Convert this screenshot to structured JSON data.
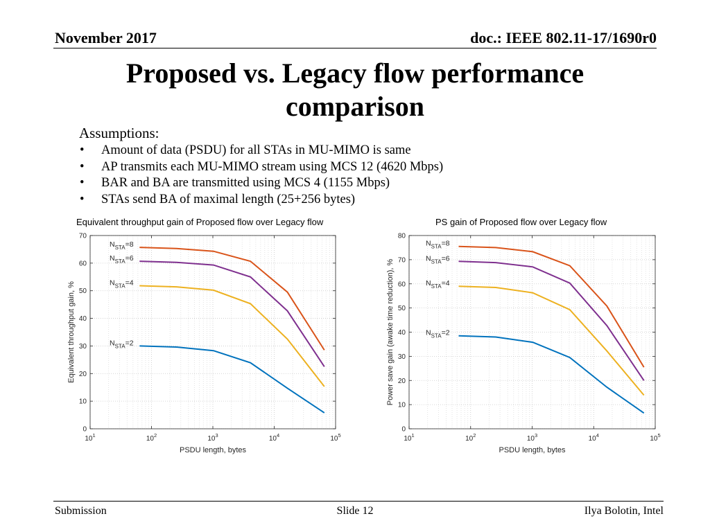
{
  "header": {
    "date": "November 2017",
    "doc": "doc.: IEEE 802.11-17/1690r0"
  },
  "title": {
    "line1": "Proposed vs. Legacy flow performance",
    "line2": "comparison"
  },
  "assumptions": {
    "heading": "Assumptions:",
    "bullet_glyph": "•",
    "items": [
      "Amount of data (PSDU) for all STAs in MU-MIMO is same",
      "AP transmits each MU-MIMO stream using MCS 12 (4620 Mbps)",
      "BAR and BA are transmitted using MCS 4 (1155 Mbps)",
      "STAs send BA of maximal length (25+256 bytes)"
    ]
  },
  "chart_data": [
    {
      "type": "line",
      "title": "Equivalent throughput gain of Proposed flow over Legacy flow",
      "xlabel": "PSDU length, bytes",
      "ylabel": "Equivalent throughput gain, %",
      "xscale": "log",
      "xlim": [
        10,
        100000
      ],
      "ylim": [
        0,
        70
      ],
      "yticks": [
        0,
        10,
        20,
        30,
        40,
        50,
        60,
        70
      ],
      "xticks": [
        10,
        100,
        1000,
        10000,
        100000
      ],
      "xtick_labels": [
        "10",
        "10",
        "10",
        "10",
        "10"
      ],
      "xtick_exponents": [
        "1",
        "2",
        "3",
        "4",
        "5"
      ],
      "grid": "on",
      "x": [
        64,
        256,
        1024,
        4096,
        16384,
        65536
      ],
      "series": [
        {
          "name": "N",
          "sub": "STA",
          "suffix": "=8",
          "color": "#D95319",
          "values": [
            65.7,
            65.3,
            64.3,
            60.7,
            49.5,
            28.5
          ]
        },
        {
          "name": "N",
          "sub": "STA",
          "suffix": "=6",
          "color": "#7E2F8E",
          "values": [
            60.7,
            60.3,
            59.3,
            55.0,
            42.7,
            22.5
          ]
        },
        {
          "name": "N",
          "sub": "STA",
          "suffix": "=4",
          "color": "#EDB120",
          "values": [
            51.8,
            51.4,
            50.2,
            45.3,
            32.5,
            15.3
          ]
        },
        {
          "name": "N",
          "sub": "STA",
          "suffix": "=2",
          "color": "#0072BD",
          "values": [
            30.0,
            29.6,
            28.3,
            23.9,
            14.7,
            5.8
          ]
        }
      ]
    },
    {
      "type": "line",
      "title": "PS gain of Proposed flow over Legacy flow",
      "xlabel": "PSDU length, bytes",
      "ylabel": "Power save gain (awake time reduction), %",
      "xscale": "log",
      "xlim": [
        10,
        100000
      ],
      "ylim": [
        0,
        80
      ],
      "yticks": [
        0,
        10,
        20,
        30,
        40,
        50,
        60,
        70,
        80
      ],
      "xticks": [
        10,
        100,
        1000,
        10000,
        100000
      ],
      "xtick_labels": [
        "10",
        "10",
        "10",
        "10",
        "10"
      ],
      "xtick_exponents": [
        "1",
        "2",
        "3",
        "4",
        "5"
      ],
      "grid": "on",
      "x": [
        64,
        256,
        1024,
        4096,
        16384,
        65536
      ],
      "series": [
        {
          "name": "N",
          "sub": "STA",
          "suffix": "=8",
          "color": "#D95319",
          "values": [
            75.5,
            75.0,
            73.3,
            67.5,
            50.8,
            25.5
          ]
        },
        {
          "name": "N",
          "sub": "STA",
          "suffix": "=6",
          "color": "#7E2F8E",
          "values": [
            69.3,
            68.8,
            67.0,
            60.3,
            42.7,
            20.0
          ]
        },
        {
          "name": "N",
          "sub": "STA",
          "suffix": "=4",
          "color": "#EDB120",
          "values": [
            59.0,
            58.5,
            56.3,
            49.3,
            32.2,
            13.9
          ]
        },
        {
          "name": "N",
          "sub": "STA",
          "suffix": "=2",
          "color": "#0072BD",
          "values": [
            38.5,
            38.0,
            35.8,
            29.5,
            17.2,
            6.5
          ]
        }
      ]
    }
  ],
  "footer": {
    "left": "Submission",
    "center": "Slide 12",
    "right": "Ilya Bolotin, Intel"
  }
}
